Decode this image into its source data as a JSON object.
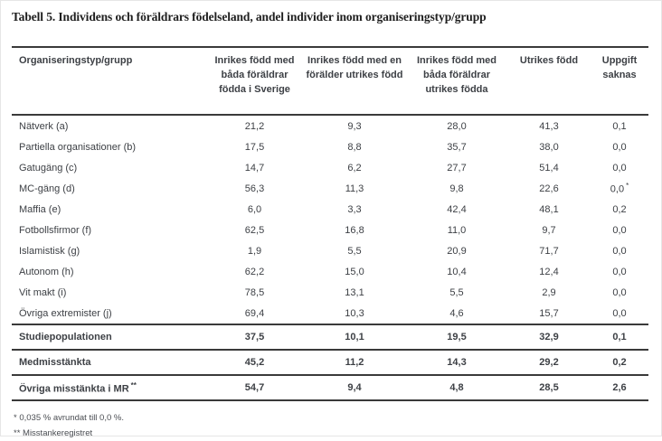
{
  "page": {
    "title": "Tabell 5. Individens och föräldrars födelseland, andel individer inom organiseringstyp/grupp"
  },
  "table": {
    "columns": [
      "Organiseringstyp/grupp",
      "Inrikes född med båda föräldrar födda i Sverige",
      "Inrikes född med en förälder utrikes född",
      "Inrikes född med båda föräldrar utrikes födda",
      "Utrikes född",
      "Uppgift saknas"
    ],
    "rows": [
      {
        "label": "Nätverk (a)",
        "values": [
          "21,2",
          "9,3",
          "28,0",
          "41,3",
          "0,1"
        ]
      },
      {
        "label": "Partiella organisationer (b)",
        "values": [
          "17,5",
          "8,8",
          "35,7",
          "38,0",
          "0,0"
        ]
      },
      {
        "label": "Gatugäng (c)",
        "values": [
          "14,7",
          "6,2",
          "27,7",
          "51,4",
          "0,0"
        ]
      },
      {
        "label": "MC-gäng (d)",
        "values": [
          "56,3",
          "11,3",
          "9,8",
          "22,6",
          "0,0"
        ],
        "last_value_marker": "*"
      },
      {
        "label": "Maffia (e)",
        "values": [
          "6,0",
          "3,3",
          "42,4",
          "48,1",
          "0,2"
        ]
      },
      {
        "label": "Fotbollsfirmor (f)",
        "values": [
          "62,5",
          "16,8",
          "11,0",
          "9,7",
          "0,0"
        ]
      },
      {
        "label": "Islamistisk (g)",
        "values": [
          "1,9",
          "5,5",
          "20,9",
          "71,7",
          "0,0"
        ]
      },
      {
        "label": "Autonom (h)",
        "values": [
          "62,2",
          "15,0",
          "10,4",
          "12,4",
          "0,0"
        ]
      },
      {
        "label": "Vit makt (i)",
        "values": [
          "78,5",
          "13,1",
          "5,5",
          "2,9",
          "0,0"
        ]
      },
      {
        "label": "Övriga extremister (j)",
        "values": [
          "69,4",
          "10,3",
          "4,6",
          "15,7",
          "0,0"
        ]
      }
    ],
    "summary_rows": [
      {
        "label": "Studiepopulationen",
        "values": [
          "37,5",
          "10,1",
          "19,5",
          "32,9",
          "0,1"
        ]
      },
      {
        "label": "Medmisstänkta",
        "values": [
          "45,2",
          "11,2",
          "14,3",
          "29,2",
          "0,2"
        ]
      },
      {
        "label": "Övriga misstänkta i MR",
        "label_marker": "**",
        "values": [
          "54,7",
          "9,4",
          "4,8",
          "28,5",
          "2,6"
        ]
      }
    ]
  },
  "footnotes": [
    "* 0,035 % avrundat till 0,0 %.",
    "** Misstankeregistret"
  ]
}
